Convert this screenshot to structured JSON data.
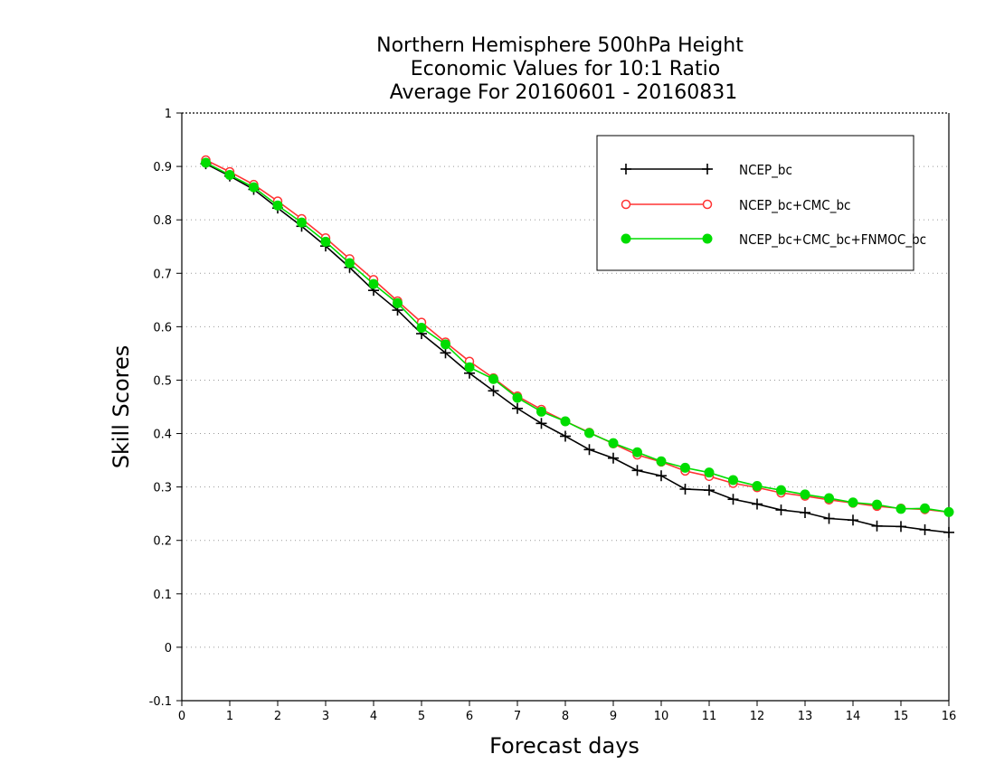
{
  "chart_data": {
    "type": "line",
    "title_lines": [
      "Northern Hemisphere 500hPa Height",
      "Economic Values for 10:1 Ratio",
      "Average For 20160601 - 20160831"
    ],
    "xlabel": "Forecast days",
    "ylabel": "Skill Scores",
    "xlim": [
      0,
      16
    ],
    "ylim": [
      -0.1,
      1
    ],
    "x_ticks": [
      "0",
      "1",
      "2",
      "3",
      "4",
      "5",
      "6",
      "7",
      "8",
      "9",
      "10",
      "11",
      "12",
      "13",
      "14",
      "15",
      "16"
    ],
    "y_ticks": [
      "-0.1",
      "0",
      "0.1",
      "0.2",
      "0.3",
      "0.4",
      "0.5",
      "0.6",
      "0.7",
      "0.8",
      "0.9",
      "1"
    ],
    "grid": "dotted horizontal",
    "legend_position": "top-right",
    "x": [
      0.5,
      1,
      1.5,
      2,
      2.5,
      3,
      3.5,
      4,
      4.5,
      5,
      5.5,
      6,
      6.5,
      7,
      7.5,
      8,
      8.5,
      9,
      9.5,
      10,
      10.5,
      11,
      11.5,
      12,
      12.5,
      13,
      13.5,
      14,
      14.5,
      15,
      15.5,
      16
    ],
    "series": [
      {
        "name": "NCEP_bc",
        "color": "#000000",
        "marker": "plus",
        "values": [
          0.905,
          0.882,
          0.857,
          0.822,
          0.788,
          0.751,
          0.711,
          0.668,
          0.631,
          0.587,
          0.551,
          0.513,
          0.48,
          0.447,
          0.419,
          0.395,
          0.37,
          0.354,
          0.331,
          0.321,
          0.296,
          0.294,
          0.277,
          0.268,
          0.257,
          0.252,
          0.241,
          0.238,
          0.227,
          0.226,
          0.22,
          0.215
        ]
      },
      {
        "name": "NCEP_bc+CMC_bc",
        "color": "#ff3333",
        "marker": "open-circle",
        "values": [
          0.912,
          0.89,
          0.866,
          0.835,
          0.802,
          0.766,
          0.727,
          0.688,
          0.648,
          0.608,
          0.571,
          0.535,
          0.504,
          0.47,
          0.445,
          0.423,
          0.402,
          0.381,
          0.36,
          0.347,
          0.33,
          0.32,
          0.307,
          0.299,
          0.289,
          0.283,
          0.276,
          0.27,
          0.264,
          0.26,
          0.258,
          0.253
        ]
      },
      {
        "name": "NCEP_bc+CMC_bc+FNMOC_bc",
        "color": "#00dd00",
        "marker": "filled-circle",
        "values": [
          0.907,
          0.884,
          0.861,
          0.827,
          0.795,
          0.759,
          0.719,
          0.68,
          0.644,
          0.598,
          0.567,
          0.524,
          0.502,
          0.467,
          0.441,
          0.423,
          0.401,
          0.382,
          0.365,
          0.348,
          0.336,
          0.327,
          0.313,
          0.302,
          0.294,
          0.286,
          0.279,
          0.271,
          0.267,
          0.259,
          0.26,
          0.253
        ]
      }
    ]
  }
}
